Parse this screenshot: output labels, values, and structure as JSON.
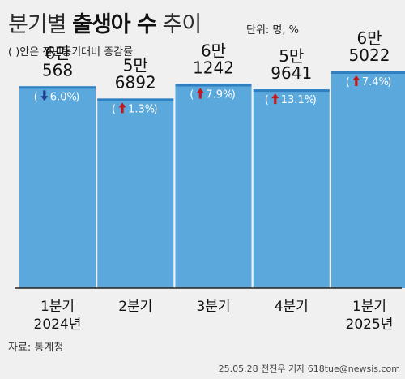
{
  "title_light": "분기별",
  "title_bold": "출생아 수",
  "title_suffix": "추이",
  "unit": "단위: 명, %",
  "subtitle": "( )안은 전년동기대비 증감률",
  "source": "자료: 통계청",
  "credit": "25.05.28 전진우 기자 618tue@newsis.com",
  "colors": {
    "bar": "#5aa8dc",
    "bar_top": "#2f7fc1",
    "up_arrow": "#c8151b",
    "down_arrow": "#1f3f8f",
    "axis": "#222222"
  },
  "chart_data": {
    "type": "bar",
    "categories": [
      "1분기 2024년",
      "2분기",
      "3분기",
      "4분기",
      "1분기 2025년"
    ],
    "category_lines": [
      [
        "1분기",
        "2024년"
      ],
      [
        "2분기"
      ],
      [
        "3분기"
      ],
      [
        "4분기"
      ],
      [
        "1분기",
        "2025년"
      ]
    ],
    "values": [
      60568,
      56892,
      61242,
      59641,
      65022
    ],
    "value_labels": [
      [
        "6만",
        "568"
      ],
      [
        "5만",
        "6892"
      ],
      [
        "6만",
        "1242"
      ],
      [
        "5만",
        "9641"
      ],
      [
        "6만",
        "5022"
      ]
    ],
    "changes": [
      -6.0,
      1.3,
      7.9,
      13.1,
      7.4
    ],
    "change_labels": [
      "6.0%",
      "1.3%",
      "7.9%",
      "13.1%",
      "7.4%"
    ],
    "change_directions": [
      "down",
      "up",
      "up",
      "up",
      "up"
    ],
    "ylim": [
      0,
      66000
    ]
  }
}
